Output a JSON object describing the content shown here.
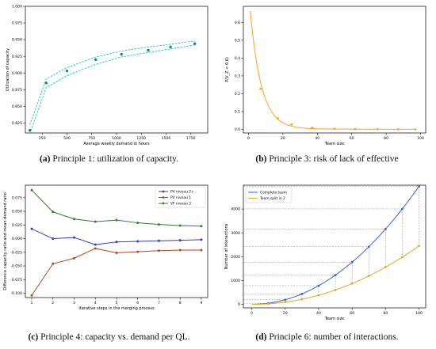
{
  "chart_data": [
    {
      "id": "a",
      "type": "scatter",
      "xlabel": "Average weekly demand in hours",
      "ylabel": "Utilization of capacity",
      "xlim": [
        80,
        1920
      ],
      "ylim": [
        0.81,
        1.0
      ],
      "xticks": [
        250,
        500,
        750,
        1000,
        1250,
        1500,
        1750
      ],
      "yticks": [
        0.825,
        0.85,
        0.875,
        0.9,
        0.925,
        0.95,
        0.975,
        1.0
      ],
      "ytick_labels": [
        "0.825",
        "0.850",
        "0.875",
        "0.900",
        "0.925",
        "0.950",
        "0.975",
        "1.000"
      ],
      "points": {
        "x": [
          125,
          290,
          500,
          790,
          1050,
          1320,
          1545,
          1790
        ],
        "y": [
          0.814,
          0.885,
          0.903,
          0.92,
          0.928,
          0.934,
          0.939,
          0.944
        ]
      },
      "upper_band": {
        "x": [
          125,
          290,
          500,
          790,
          1050,
          1320,
          1545,
          1790
        ],
        "y": [
          0.822,
          0.891,
          0.908,
          0.924,
          0.933,
          0.939,
          0.943,
          0.948
        ]
      },
      "lower_band": {
        "x": [
          125,
          290,
          500,
          790,
          1050,
          1320,
          1545,
          1790
        ],
        "y": [
          0.809,
          0.878,
          0.896,
          0.913,
          0.924,
          0.931,
          0.936,
          0.942
        ]
      },
      "colors": {
        "points": "#1f77b4",
        "band": "#17becf"
      },
      "grid": false
    },
    {
      "id": "b",
      "type": "line",
      "xlabel": "Team size",
      "ylabel": "P(V_Z < 0.6)",
      "xlim": [
        -3,
        103
      ],
      "ylim": [
        -0.02,
        0.69
      ],
      "xticks": [
        0,
        20,
        40,
        60,
        80,
        100
      ],
      "yticks": [
        0.0,
        0.1,
        0.2,
        0.3,
        0.4,
        0.5,
        0.6
      ],
      "ytick_labels": [
        "0.0",
        "0.1",
        "0.2",
        "0.3",
        "0.4",
        "0.5",
        "0.6"
      ],
      "markers": {
        "x": [
          7,
          17,
          25,
          37,
          50,
          62,
          75,
          87,
          97
        ],
        "y": [
          0.228,
          0.062,
          0.028,
          0.01,
          0.004,
          0.002,
          0.001,
          0.0005,
          0.0003
        ]
      },
      "curve_start": 1,
      "color": "#ff9f1c",
      "grid": false
    },
    {
      "id": "c",
      "type": "line",
      "xlabel": "Iterative steps in the merging process",
      "ylabel": "Difference capacity ratio and mean demand ratio",
      "xlim": [
        0.7,
        9.3
      ],
      "ylim": [
        -0.108,
        0.098
      ],
      "x": [
        1,
        2,
        3,
        4,
        5,
        6,
        7,
        8,
        9
      ],
      "xticks": [
        1,
        2,
        3,
        4,
        5,
        6,
        7,
        8,
        9
      ],
      "yticks": [
        -0.1,
        -0.075,
        -0.05,
        -0.025,
        0.0,
        0.025,
        0.05,
        0.075
      ],
      "ytick_labels": [
        "-0.100",
        "-0.075",
        "-0.050",
        "-0.025",
        "0.000",
        "0.025",
        "0.050",
        "0.075"
      ],
      "series": [
        {
          "name": "PV niveau 2+",
          "color": "#2e3bd6",
          "values": [
            0.018,
            0.0,
            0.002,
            -0.011,
            -0.006,
            -0.005,
            -0.004,
            -0.003,
            -0.002
          ]
        },
        {
          "name": "PV niveau 1",
          "color": "#b04a26",
          "values": [
            -0.104,
            -0.046,
            -0.036,
            -0.018,
            -0.026,
            -0.024,
            -0.022,
            -0.021,
            -0.021
          ]
        },
        {
          "name": "VF niveau 3",
          "color": "#2e7d32",
          "values": [
            0.089,
            0.049,
            0.036,
            0.031,
            0.034,
            0.029,
            0.026,
            0.024,
            0.023
          ]
        }
      ],
      "legend_position": "top-right",
      "grid": false
    },
    {
      "id": "d",
      "type": "line",
      "xlabel": "Team size",
      "ylabel": "Number of interactions",
      "xlim": [
        -5,
        104
      ],
      "ylim": [
        -150,
        5000
      ],
      "xticks": [
        0,
        20,
        40,
        60,
        80,
        100
      ],
      "yticks": [
        0,
        1000,
        2000,
        3000,
        4000
      ],
      "series": [
        {
          "name": "Complete team",
          "color": "#3c5fcf",
          "markers_x": [
            10,
            20,
            30,
            40,
            50,
            60,
            70,
            80,
            90,
            100
          ],
          "markers_y": [
            45,
            190,
            435,
            780,
            1225,
            1770,
            2415,
            3160,
            4005,
            4950
          ]
        },
        {
          "name": "Team split in 2",
          "color": "#e6a81f",
          "markers_x": [
            10,
            20,
            30,
            40,
            50,
            60,
            70,
            80,
            90,
            100
          ],
          "markers_y": [
            20,
            90,
            210,
            380,
            600,
            870,
            1190,
            1560,
            1980,
            2450
          ]
        }
      ],
      "legend_position": "top-left",
      "grid": false
    }
  ],
  "captions": [
    {
      "label": "(a)",
      "text": "Principle 1: utilization of capacity."
    },
    {
      "label": "(b)",
      "text": "Principle 3: risk of lack of effective"
    },
    {
      "label": "(c)",
      "text": "Principle 4: capacity vs. demand per QL."
    },
    {
      "label": "(d)",
      "text": "Principle 6: number of interactions."
    }
  ]
}
